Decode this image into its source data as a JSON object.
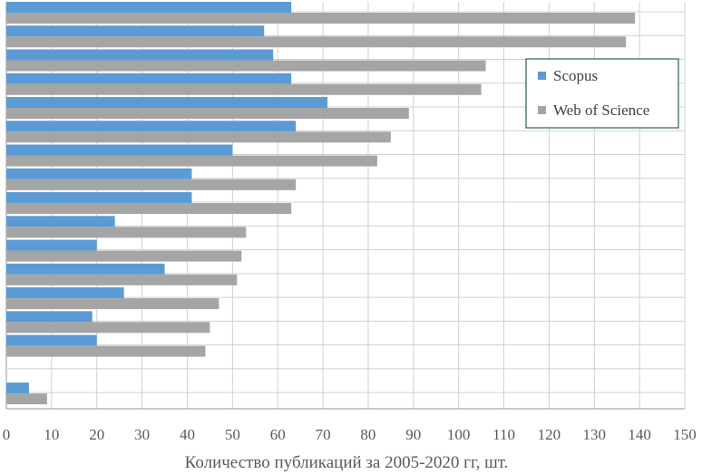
{
  "chart_data": {
    "type": "bar",
    "orientation": "horizontal",
    "title": "",
    "xlabel": "Количество публикаций за 2005-2020 гг, шт.",
    "ylabel": "",
    "xlim": [
      0,
      150
    ],
    "x_ticks": [
      0,
      10,
      20,
      30,
      40,
      50,
      60,
      70,
      80,
      90,
      100,
      110,
      120,
      130,
      140,
      150
    ],
    "grid": true,
    "legend_position": "top-right",
    "category_count": 16,
    "series": [
      {
        "name": "Scopus",
        "color": "#5B9BD5",
        "values": [
          63,
          57,
          59,
          63,
          71,
          64,
          50,
          41,
          41,
          24,
          20,
          35,
          26,
          19,
          20,
          null,
          5
        ]
      },
      {
        "name": "Web of Science",
        "color": "#A5A5A5",
        "values": [
          139,
          137,
          106,
          105,
          89,
          85,
          82,
          64,
          63,
          53,
          52,
          51,
          47,
          45,
          44,
          null,
          9
        ]
      }
    ]
  }
}
